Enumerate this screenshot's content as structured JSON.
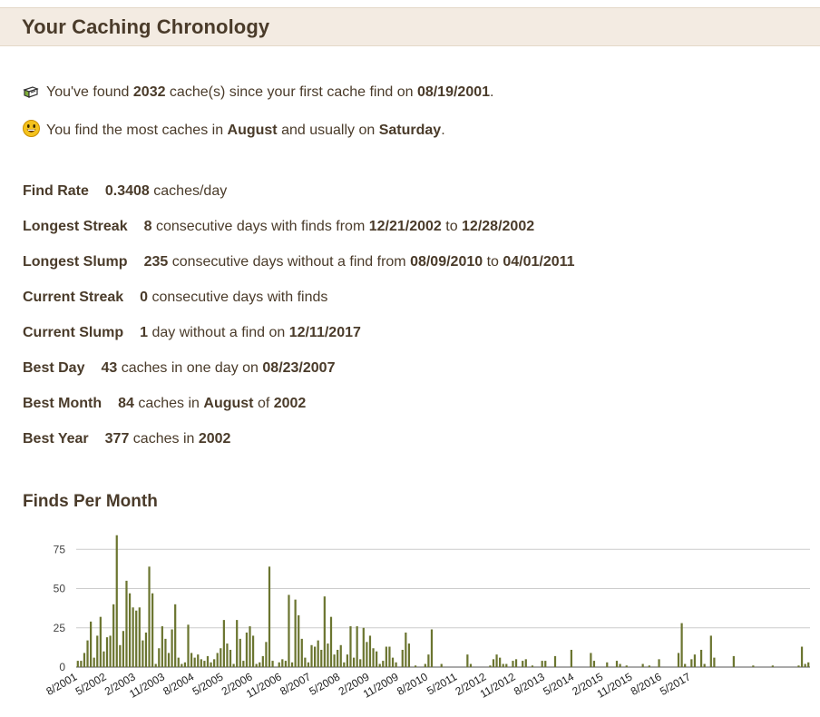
{
  "header": {
    "title": "Your Caching Chronology"
  },
  "summary": {
    "found_prefix": "You've found ",
    "found_count": "2032",
    "found_mid": " cache(s) since your first cache find on ",
    "first_find_date": "08/19/2001",
    "found_suffix": ".",
    "most_prefix": "You find the most caches in ",
    "most_month": "August",
    "most_mid": " and usually on ",
    "most_day": "Saturday",
    "most_suffix": "."
  },
  "stats": {
    "find_rate": {
      "label": "Find Rate",
      "value": "0.3408",
      "text": " caches/day"
    },
    "longest_streak": {
      "label": "Longest Streak",
      "value": "8",
      "text1": " consecutive days with finds from ",
      "from": "12/21/2002",
      "text2": " to ",
      "to": "12/28/2002"
    },
    "longest_slump": {
      "label": "Longest Slump",
      "value": "235",
      "text1": " consecutive days without a find from ",
      "from": "08/09/2010",
      "text2": " to ",
      "to": "04/01/2011"
    },
    "current_streak": {
      "label": "Current Streak",
      "value": "0",
      "text": " consecutive days with finds"
    },
    "current_slump": {
      "label": "Current Slump",
      "value": "1",
      "text1": " day without a find on ",
      "date": "12/11/2017"
    },
    "best_day": {
      "label": "Best Day",
      "value": "43",
      "text1": " caches in one day on ",
      "date": "08/23/2007"
    },
    "best_month": {
      "label": "Best Month",
      "value": "84",
      "text1": " caches in ",
      "month": "August",
      "text2": " of ",
      "year": "2002"
    },
    "best_year": {
      "label": "Best Year",
      "value": "377",
      "text1": " caches in ",
      "year": "2002"
    }
  },
  "chart_section": {
    "title": "Finds Per Month"
  },
  "chart_data": {
    "type": "bar",
    "title": "",
    "xlabel": "",
    "ylabel": "",
    "ylim": [
      0,
      85
    ],
    "yticks": [
      0,
      25,
      50,
      75
    ],
    "grid": true,
    "bar_color": "#6b7530",
    "start_month": "8/2001",
    "x_tick_labels": [
      "8/2001",
      "5/2002",
      "2/2003",
      "11/2003",
      "8/2004",
      "5/2005",
      "2/2006",
      "11/2006",
      "8/2007",
      "5/2008",
      "2/2009",
      "11/2009",
      "8/2010",
      "5/2011",
      "2/2012",
      "11/2012",
      "8/2013",
      "5/2014",
      "2/2015",
      "11/2015",
      "8/2016",
      "5/2017"
    ],
    "values": [
      4,
      4,
      9,
      17,
      29,
      6,
      20,
      32,
      10,
      19,
      20,
      40,
      84,
      14,
      23,
      55,
      47,
      38,
      36,
      38,
      17,
      22,
      64,
      47,
      2,
      12,
      26,
      18,
      9,
      24,
      40,
      6,
      2,
      3,
      27,
      9,
      6,
      8,
      5,
      4,
      7,
      3,
      5,
      9,
      12,
      30,
      15,
      11,
      2,
      30,
      18,
      4,
      22,
      26,
      20,
      2,
      3,
      7,
      16,
      64,
      4,
      0,
      3,
      5,
      4,
      46,
      3,
      43,
      33,
      18,
      6,
      3,
      14,
      13,
      17,
      11,
      45,
      15,
      32,
      8,
      11,
      14,
      3,
      8,
      26,
      6,
      26,
      5,
      25,
      16,
      20,
      12,
      10,
      2,
      4,
      13,
      13,
      6,
      3,
      0,
      11,
      22,
      15,
      0,
      1,
      0,
      0,
      2,
      8,
      24,
      0,
      0,
      2,
      0,
      0,
      0,
      0,
      0,
      0,
      0,
      8,
      2,
      0,
      0,
      0,
      0,
      0,
      1,
      5,
      8,
      6,
      2,
      2,
      0,
      4,
      5,
      0,
      4,
      5,
      0,
      1,
      0,
      0,
      4,
      4,
      0,
      0,
      7,
      0,
      0,
      0,
      0,
      11,
      0,
      0,
      0,
      0,
      0,
      9,
      4,
      0,
      0,
      0,
      3,
      0,
      0,
      4,
      2,
      0,
      1,
      0,
      0,
      0,
      0,
      2,
      0,
      1,
      0,
      0,
      5,
      0,
      0,
      0,
      0,
      0,
      9,
      28,
      2,
      0,
      5,
      8,
      0,
      11,
      2,
      0,
      20,
      6,
      0,
      0,
      0,
      0,
      0,
      7,
      0,
      0,
      0,
      0,
      0,
      1,
      0,
      0,
      0,
      0,
      0,
      1,
      0,
      0,
      0,
      0,
      0,
      0,
      0,
      1,
      13,
      2,
      3
    ]
  }
}
